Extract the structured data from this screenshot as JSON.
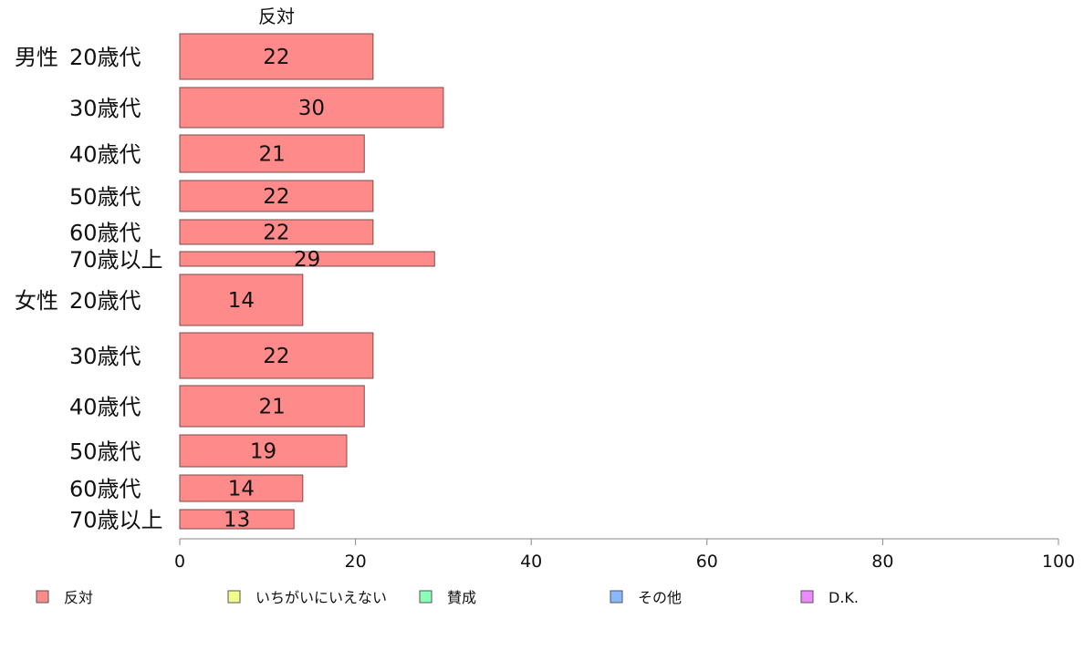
{
  "chart_data": {
    "type": "bar",
    "orientation": "horizontal",
    "stacked": true,
    "series_header": "反対",
    "xlim": [
      0,
      100
    ],
    "xticks": [
      0,
      20,
      40,
      60,
      80,
      100
    ],
    "groups": [
      {
        "label": "男性",
        "categories": [
          "20歳代",
          "30歳代",
          "40歳代",
          "50歳代",
          "60歳代",
          "70歳以上"
        ]
      },
      {
        "label": "女性",
        "categories": [
          "20歳代",
          "30歳代",
          "40歳代",
          "50歳代",
          "60歳代",
          "70歳以上"
        ]
      }
    ],
    "series": [
      {
        "name": "反対",
        "color": "#ff8a8a",
        "values": [
          22,
          30,
          21,
          22,
          22,
          29,
          14,
          22,
          21,
          19,
          14,
          13
        ]
      },
      {
        "name": "いちがいにいえない",
        "color": "#f0ff8a"
      },
      {
        "name": "賛成",
        "color": "#8affb8"
      },
      {
        "name": "その他",
        "color": "#8ab8ff"
      },
      {
        "name": "D.K.",
        "color": "#ee8aff"
      }
    ],
    "legend_position": "bottom",
    "grid": false
  }
}
